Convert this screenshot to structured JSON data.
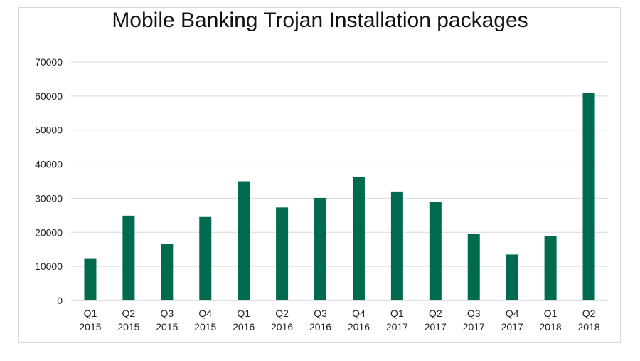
{
  "chart_data": {
    "type": "bar",
    "title": "Mobile Banking Trojan Installation packages",
    "categories": [
      [
        "Q1",
        "2015"
      ],
      [
        "Q2",
        "2015"
      ],
      [
        "Q3",
        "2015"
      ],
      [
        "Q4",
        "2015"
      ],
      [
        "Q1",
        "2016"
      ],
      [
        "Q2",
        "2016"
      ],
      [
        "Q3",
        "2016"
      ],
      [
        "Q4",
        "2016"
      ],
      [
        "Q1",
        "2017"
      ],
      [
        "Q2",
        "2017"
      ],
      [
        "Q3",
        "2017"
      ],
      [
        "Q4",
        "2017"
      ],
      [
        "Q1",
        "2018"
      ],
      [
        "Q2",
        "2018"
      ]
    ],
    "values": [
      12200,
      24900,
      16700,
      24500,
      35000,
      27300,
      30100,
      36200,
      32000,
      28900,
      19600,
      13500,
      19000,
      61000
    ],
    "ylim": [
      0,
      70000
    ],
    "yticks": [
      0,
      10000,
      20000,
      30000,
      40000,
      50000,
      60000,
      70000
    ],
    "grid": true,
    "bar_color": "#006a4e"
  }
}
